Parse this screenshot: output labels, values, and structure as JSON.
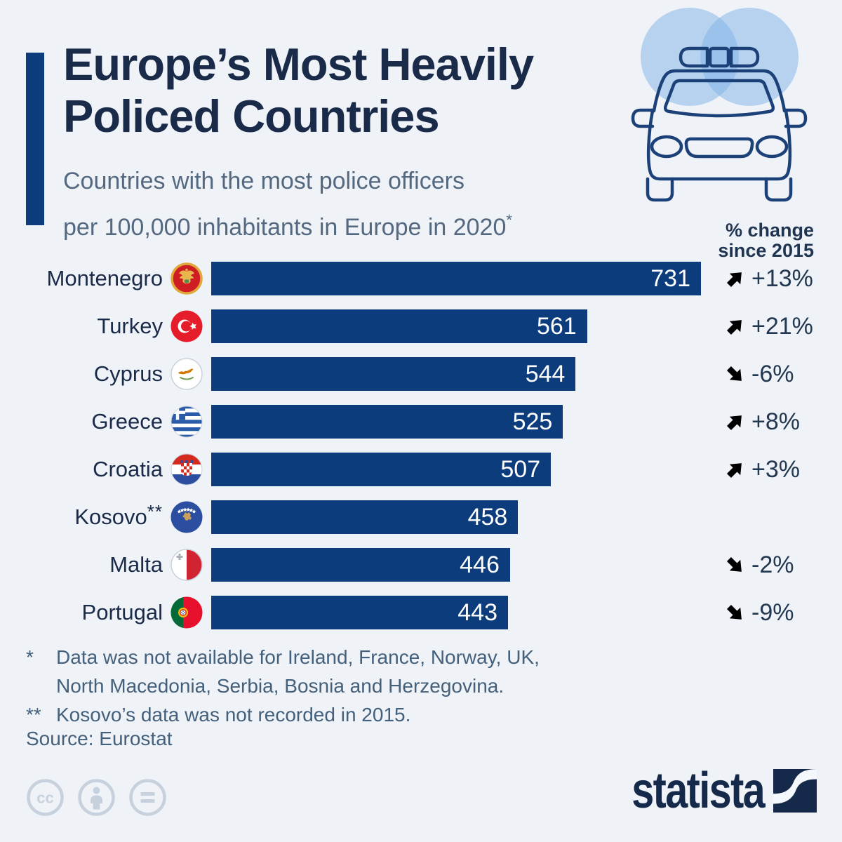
{
  "header": {
    "title_line1": "Europe’s Most Heavily",
    "title_line2": "Policed Countries",
    "subtitle_line1": "Countries with the most police officers",
    "subtitle_line2": "per 100,000 inhabitants in Europe in 2020",
    "subtitle_footnote_marker": "*",
    "header_icon": "police-car-icon"
  },
  "change_header": {
    "line1": "% change",
    "line2": "since 2015"
  },
  "chart_data": {
    "type": "bar",
    "orientation": "horizontal",
    "title": "Europe’s Most Heavily Policed Countries",
    "subtitle": "Countries with the most police officers per 100,000 inhabitants in Europe in 2020",
    "unit": "police officers per 100,000 inhabitants",
    "year": "2020",
    "xlim": [
      0,
      731
    ],
    "grid": false,
    "legend": false,
    "categories": [
      "Montenegro",
      "Turkey",
      "Cyprus",
      "Greece",
      "Croatia",
      "Kosovo",
      "Malta",
      "Portugal"
    ],
    "values": [
      731,
      561,
      544,
      525,
      507,
      458,
      446,
      443
    ],
    "rows": [
      {
        "country": "Montenegro",
        "note": "",
        "flag_icon": "montenegro-flag-icon",
        "value": 731,
        "change": "+13%",
        "direction": "up"
      },
      {
        "country": "Turkey",
        "note": "",
        "flag_icon": "turkey-flag-icon",
        "value": 561,
        "change": "+21%",
        "direction": "up"
      },
      {
        "country": "Cyprus",
        "note": "",
        "flag_icon": "cyprus-flag-icon",
        "value": 544,
        "change": "-6%",
        "direction": "down"
      },
      {
        "country": "Greece",
        "note": "",
        "flag_icon": "greece-flag-icon",
        "value": 525,
        "change": "+8%",
        "direction": "up"
      },
      {
        "country": "Croatia",
        "note": "",
        "flag_icon": "croatia-flag-icon",
        "value": 507,
        "change": "+3%",
        "direction": "up"
      },
      {
        "country": "Kosovo",
        "note": "**",
        "flag_icon": "kosovo-flag-icon",
        "value": 458,
        "change": "",
        "direction": ""
      },
      {
        "country": "Malta",
        "note": "",
        "flag_icon": "malta-flag-icon",
        "value": 446,
        "change": "-2%",
        "direction": "down"
      },
      {
        "country": "Portugal",
        "note": "",
        "flag_icon": "portugal-flag-icon",
        "value": 443,
        "change": "-9%",
        "direction": "down"
      }
    ]
  },
  "footnotes": {
    "star1_marker": "*",
    "star1_line1": "Data was not available for Ireland, France, Norway, UK,",
    "star1_line2": "North Macedonia, Serbia, Bosnia and Herzegovina.",
    "star2_marker": "**",
    "star2_text": "Kosovo’s data was not recorded in 2015.",
    "source": "Source: Eurostat"
  },
  "branding": {
    "logo_text": "statista",
    "logo_mark": "statista-swoosh-icon",
    "license_icons": [
      "cc-icon",
      "attribution-icon",
      "equals-icon"
    ]
  },
  "colors": {
    "background": "#eff2f7",
    "bar": "#0d3c7c",
    "accent_bar": "#0d3c7c",
    "title": "#1a2b4a",
    "subtitle": "#54687f",
    "value_text": "#ffffff",
    "up_arrow": "#47637f",
    "down_arrow": "#94a8ba",
    "footnote": "#44607b",
    "cc_gray": "#c7d1dd",
    "car_outline": "#1c4178",
    "car_circle": "#7fb1e8"
  }
}
